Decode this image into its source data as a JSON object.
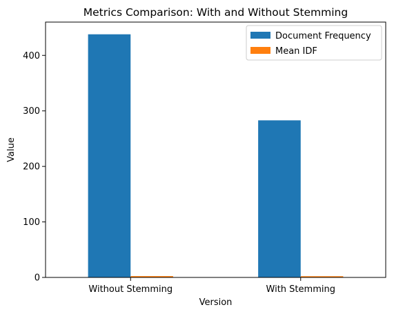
{
  "chart_data": {
    "type": "bar",
    "title": "Metrics Comparison: With and Without Stemming",
    "xlabel": "Version",
    "ylabel": "Value",
    "categories": [
      "Without Stemming",
      "With Stemming"
    ],
    "series": [
      {
        "name": "Document Frequency",
        "values": [
          438,
          283
        ],
        "color": "#1f77b4"
      },
      {
        "name": "Mean IDF",
        "values": [
          2.4,
          2.2
        ],
        "color": "#ff7f0e"
      }
    ],
    "ylim": [
      0,
      460
    ],
    "yticks": [
      0,
      100,
      200,
      300,
      400
    ],
    "grid": false,
    "legend_position": "top-right"
  }
}
